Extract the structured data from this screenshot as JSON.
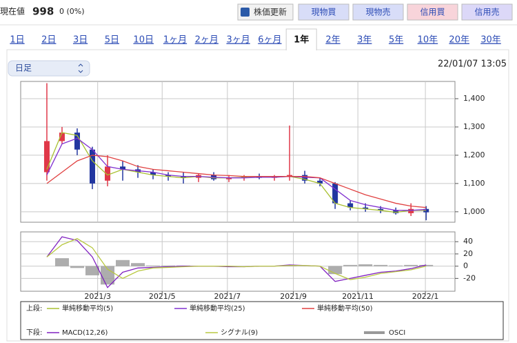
{
  "header": {
    "label": "現在値",
    "price": "998",
    "change": "0 (0%)",
    "buttons": [
      "株価更新",
      "現物買",
      "現物売",
      "信用買",
      "信用売"
    ]
  },
  "tabs": [
    "1日",
    "2日",
    "3日",
    "5日",
    "10日",
    "1ヶ月",
    "2ヶ月",
    "3ヶ月",
    "6ヶ月",
    "1年",
    "2年",
    "3年",
    "5年",
    "10年",
    "20年",
    "30年"
  ],
  "active_tab": "1年",
  "dropdown": "日足",
  "timestamp": "22/01/07 13:05",
  "chart_data": [
    {
      "type": "candlestick",
      "legend_title": "上段:",
      "x": [
        0,
        2,
        4,
        6,
        8,
        10,
        12,
        14,
        16,
        18,
        20,
        22,
        24,
        26,
        28,
        30,
        32,
        34,
        36,
        38,
        40,
        42,
        44,
        46,
        48,
        50
      ],
      "open": [
        1140,
        1250,
        1280,
        1220,
        1110,
        1160,
        1150,
        1140,
        1130,
        1125,
        1120,
        1130,
        1115,
        1120,
        1125,
        1120,
        1125,
        1130,
        1110,
        1100,
        1030,
        1015,
        1010,
        1005,
        995,
        1010
      ],
      "high": [
        1455,
        1300,
        1295,
        1230,
        1200,
        1180,
        1165,
        1150,
        1140,
        1140,
        1135,
        1140,
        1130,
        1130,
        1135,
        1130,
        1305,
        1145,
        1120,
        1105,
        1040,
        1030,
        1020,
        1015,
        1030,
        1020
      ],
      "low": [
        1110,
        1240,
        1200,
        1080,
        1090,
        1110,
        1120,
        1115,
        1110,
        1100,
        1105,
        1110,
        1105,
        1110,
        1115,
        1110,
        1110,
        1100,
        1090,
        1010,
        1005,
        1000,
        995,
        990,
        985,
        970
      ],
      "close": [
        1250,
        1280,
        1220,
        1100,
        1160,
        1150,
        1140,
        1130,
        1125,
        1120,
        1130,
        1115,
        1120,
        1125,
        1120,
        1125,
        1130,
        1110,
        1100,
        1030,
        1015,
        1010,
        1005,
        995,
        1010,
        998
      ],
      "up_color": "#e03848",
      "down_color": "#2236a0",
      "series": [
        {
          "name": "単純移動平均(5)",
          "color": "#a8c030",
          "values": [
            1150,
            1280,
            1270,
            1180,
            1130,
            1150,
            1140,
            1130,
            1125,
            1120,
            1125,
            1120,
            1120,
            1122,
            1122,
            1122,
            1125,
            1115,
            1100,
            1030,
            1015,
            1010,
            1005,
            998,
            1005,
            1005
          ]
        },
        {
          "name": "単純移動平均(25)",
          "color": "#8030d0",
          "values": [
            1130,
            1240,
            1260,
            1220,
            1160,
            1150,
            1145,
            1140,
            1130,
            1125,
            1125,
            1122,
            1120,
            1120,
            1122,
            1122,
            1125,
            1122,
            1120,
            1080,
            1040,
            1025,
            1015,
            1005,
            1005,
            1008
          ]
        },
        {
          "name": "単純移動平均(50)",
          "color": "#e04040",
          "values": [
            1100,
            1140,
            1180,
            1200,
            1195,
            1180,
            1160,
            1150,
            1145,
            1140,
            1135,
            1130,
            1128,
            1125,
            1125,
            1125,
            1125,
            1125,
            1120,
            1100,
            1080,
            1060,
            1045,
            1030,
            1020,
            1015
          ]
        }
      ],
      "xlim": [
        -3.45,
        53.8
      ],
      "ylim": [
        963,
        1461
      ],
      "yticks": [
        {
          "value": 1000,
          "label": "1,000"
        },
        {
          "value": 1100,
          "label": "1,100"
        },
        {
          "value": 1200,
          "label": "1,200"
        },
        {
          "value": 1300,
          "label": "1,300"
        },
        {
          "value": 1400,
          "label": "1,400"
        }
      ]
    },
    {
      "type": "macd",
      "legend_title": "下段:",
      "x": [
        0,
        2,
        4,
        6,
        8,
        10,
        12,
        14,
        16,
        18,
        20,
        22,
        24,
        26,
        28,
        30,
        32,
        34,
        36,
        38,
        40,
        42,
        44,
        46,
        48,
        50
      ],
      "series": [
        {
          "name": "MACD(12,26)",
          "color": "#8020c0",
          "style": "line",
          "values": [
            15,
            48,
            42,
            15,
            -35,
            -10,
            -3,
            -2,
            -1,
            0,
            0,
            0,
            -1,
            -1,
            0,
            0,
            2,
            1,
            0,
            -25,
            -20,
            -15,
            -10,
            -8,
            -4,
            2
          ]
        },
        {
          "name": "シグナル(9)",
          "color": "#b8c840",
          "style": "line",
          "values": [
            15,
            35,
            45,
            30,
            -5,
            -20,
            -8,
            -3,
            -2,
            -1,
            0,
            0,
            0,
            -1,
            0,
            0,
            1,
            1,
            0,
            -12,
            -22,
            -18,
            -12,
            -9,
            -6,
            0
          ]
        },
        {
          "name": "OSCI",
          "color": "#999999",
          "style": "bar",
          "values": [
            0,
            13,
            -3,
            -15,
            -30,
            10,
            5,
            1,
            1,
            1,
            0,
            0,
            -1,
            0,
            0,
            0,
            1,
            0,
            0,
            -13,
            2,
            3,
            2,
            1,
            2,
            2
          ]
        }
      ],
      "xlim": [
        -3.45,
        53.8
      ],
      "ylim": [
        -41,
        56
      ],
      "yticks": [
        -20,
        0,
        20,
        40
      ],
      "xticks": [
        {
          "value": 6.7,
          "label": "2021/3"
        },
        {
          "value": 15.2,
          "label": "2021/5"
        },
        {
          "value": 23.8,
          "label": "2021/7"
        },
        {
          "value": 32.5,
          "label": "2021/9"
        },
        {
          "value": 41,
          "label": "2021/11"
        },
        {
          "value": 49.9,
          "label": "2022/1"
        }
      ]
    }
  ]
}
